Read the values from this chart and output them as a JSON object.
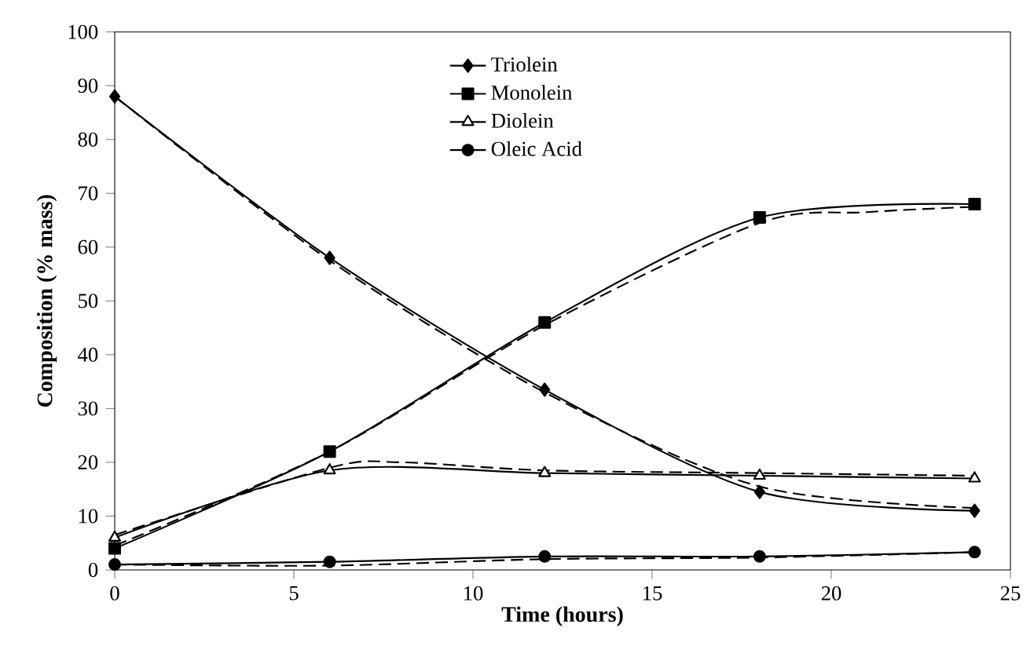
{
  "chart_data": {
    "type": "line",
    "xlabel": "Time (hours)",
    "ylabel": "Composition (% mass)",
    "xlim": [
      0,
      25
    ],
    "xticks": [
      0,
      5,
      10,
      15,
      20,
      25
    ],
    "ylim": [
      0,
      100
    ],
    "yticks": [
      0,
      10,
      20,
      30,
      40,
      50,
      60,
      70,
      80,
      90,
      100
    ],
    "legend": "top",
    "grid": false,
    "series": [
      {
        "name": "Triolein",
        "color": "#000000",
        "marker": "diamond",
        "x": [
          0,
          6,
          12,
          18,
          24
        ],
        "values": [
          88,
          58,
          33.5,
          14.5,
          11
        ]
      },
      {
        "name": "Monolein",
        "color": "#000000",
        "marker": "square",
        "x": [
          0,
          6,
          12,
          18,
          24
        ],
        "values": [
          4,
          22,
          46,
          65.5,
          68
        ]
      },
      {
        "name": "Diolein",
        "color": "#000000",
        "marker": "triangle",
        "x": [
          0,
          6,
          12,
          18,
          24
        ],
        "values": [
          6,
          18.5,
          18,
          17.5,
          17
        ]
      },
      {
        "name": "Oleic Acid",
        "color": "#000000",
        "marker": "circle",
        "x": [
          0,
          6,
          12,
          18,
          24
        ],
        "values": [
          1,
          1.5,
          2.5,
          2.5,
          3.3
        ]
      },
      {
        "color": "#000000",
        "marker": "none",
        "line_style": "dashed",
        "x": [
          0,
          6,
          12,
          18,
          24
        ],
        "values": [
          88,
          57.5,
          33,
          15.5,
          11.5
        ]
      },
      {
        "color": "#000000",
        "marker": "none",
        "line_style": "dashed",
        "x": [
          0,
          6,
          12,
          18,
          21,
          24
        ],
        "values": [
          4.5,
          22,
          45.5,
          64.5,
          66.5,
          67.5
        ]
      },
      {
        "color": "#000000",
        "marker": "none",
        "line_style": "dashed",
        "x": [
          0,
          6,
          8,
          12,
          18,
          24
        ],
        "values": [
          6.5,
          19,
          20,
          18.5,
          18,
          17.5
        ]
      },
      {
        "color": "#000000",
        "marker": "none",
        "line_style": "dashed",
        "x": [
          0,
          6,
          12,
          18,
          24
        ],
        "values": [
          1,
          0.8,
          2,
          2.3,
          3.3
        ]
      }
    ]
  }
}
